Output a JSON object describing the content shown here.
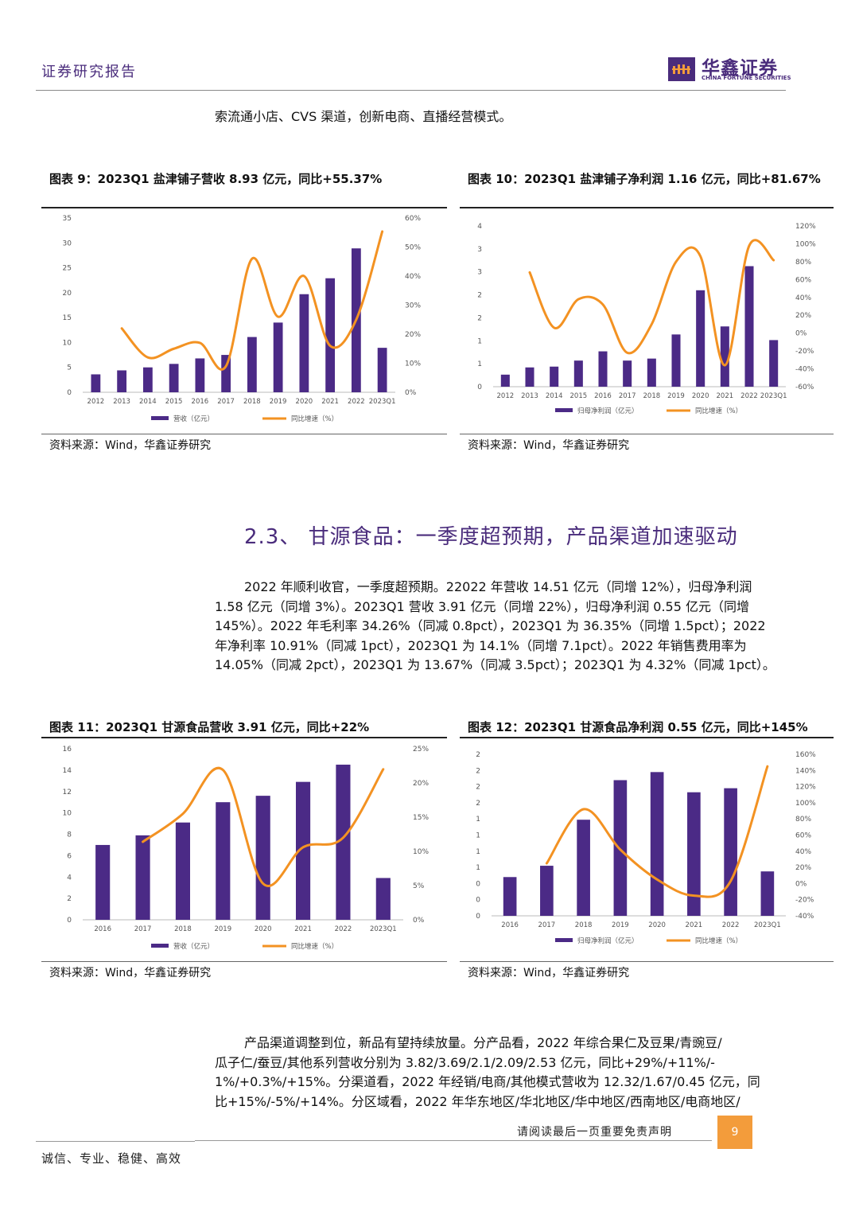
{
  "header": {
    "title": "证券研究报告",
    "logo_cn": "华鑫证券",
    "logo_en": "CHINA FORTUNE SECURITIES"
  },
  "intro_text": "索流通小店、CVS 渠道，创新电商、直播经营模式。",
  "figure9": {
    "title": "图表 9：2023Q1 盐津铺子营收 8.93 亿元，同比+55.37%",
    "source": "资料来源：Wind，华鑫证券研究",
    "chart_data": {
      "type": "bar",
      "categories": [
        "2012",
        "2013",
        "2014",
        "2015",
        "2016",
        "2017",
        "2018",
        "2019",
        "2020",
        "2021",
        "2022",
        "2023Q1"
      ],
      "series": [
        {
          "name": "营收（亿元）",
          "type": "bar",
          "axis": "left",
          "color": "#4b2a86",
          "values": [
            3.6,
            4.4,
            5.0,
            5.7,
            6.8,
            7.5,
            11.1,
            14.0,
            19.7,
            22.9,
            28.9,
            8.93
          ]
        },
        {
          "name": "同比增速（%）",
          "type": "line",
          "axis": "right",
          "color": "#f39222",
          "values": [
            null,
            22,
            12,
            15,
            17,
            9,
            46,
            26,
            40,
            16,
            25,
            55.37
          ]
        }
      ],
      "yleft": {
        "min": 0,
        "max": 35,
        "ticks": [
          "0",
          "5",
          "10",
          "15",
          "20",
          "25",
          "30",
          "35"
        ]
      },
      "yright": {
        "min": 0,
        "max": 60,
        "ticks": [
          "0%",
          "10%",
          "20%",
          "30%",
          "40%",
          "50%",
          "60%"
        ]
      }
    }
  },
  "figure10": {
    "title": "图表 10：2023Q1 盐津铺子净利润 1.16 亿元，同比+81.67%",
    "source": "资料来源：Wind，华鑫证券研究",
    "chart_data": {
      "type": "bar",
      "categories": [
        "2012",
        "2013",
        "2014",
        "2015",
        "2016",
        "2017",
        "2018",
        "2019",
        "2020",
        "2021",
        "2022",
        "2023Q1"
      ],
      "series": [
        {
          "name": "归母净利润（亿元）",
          "type": "bar",
          "axis": "left",
          "color": "#4b2a86",
          "values": [
            0.3,
            0.48,
            0.5,
            0.65,
            0.88,
            0.65,
            0.7,
            1.3,
            2.4,
            1.5,
            3.0,
            1.16
          ]
        },
        {
          "name": "同比增速（%）",
          "type": "line",
          "axis": "right",
          "color": "#f39222",
          "values": [
            null,
            68,
            6,
            38,
            32,
            -22,
            10,
            80,
            86,
            -36,
            98,
            81.67
          ]
        }
      ],
      "yleft": {
        "min": 0,
        "max": 4,
        "ticks": [
          "0",
          "1",
          "1",
          "2",
          "2",
          "3",
          "3",
          "4"
        ]
      },
      "yright": {
        "min": -60,
        "max": 120,
        "ticks": [
          "-60%",
          "-40%",
          "-20%",
          "0%",
          "20%",
          "40%",
          "60%",
          "80%",
          "100%",
          "120%"
        ]
      }
    }
  },
  "section_title": "2.3、 甘源食品：一季度超预期，产品渠道加速驱动",
  "para1": [
    "2022 年顺利收官，一季度超预期。22022 年营收 14.51 亿元（同增 12%），归母净利润",
    "1.58 亿元（同增 3%）。2023Q1 营收 3.91 亿元（同增 22%），归母净利润 0.55 亿元（同增",
    "145%）。2022 年毛利率 34.26%（同减 0.8pct），2023Q1 为 36.35%（同增 1.5pct）；2022",
    "年净利率 10.91%（同减 1pct），2023Q1 为 14.1%（同增 7.1pct）。2022 年销售费用率为",
    "14.05%（同减 2pct），2023Q1 为 13.67%（同减 3.5pct）；2023Q1 为 4.32%（同减 1pct）。"
  ],
  "figure11": {
    "title": "图表 11：2023Q1 甘源食品营收 3.91 亿元，同比+22%",
    "source": "资料来源：Wind，华鑫证券研究",
    "chart_data": {
      "type": "bar",
      "categories": [
        "2016",
        "2017",
        "2018",
        "2019",
        "2020",
        "2021",
        "2022",
        "2023Q1"
      ],
      "series": [
        {
          "name": "营收（亿元）",
          "type": "bar",
          "axis": "left",
          "color": "#4b2a86",
          "values": [
            7.0,
            7.9,
            9.1,
            11.0,
            11.6,
            12.9,
            14.51,
            3.91
          ]
        },
        {
          "name": "同比增速（%）",
          "type": "line",
          "axis": "right",
          "color": "#f39222",
          "values": [
            null,
            11.4,
            15.5,
            21.9,
            5.3,
            10.6,
            12,
            22
          ]
        }
      ],
      "yleft": {
        "min": 0,
        "max": 16,
        "ticks": [
          "0",
          "2",
          "4",
          "6",
          "8",
          "10",
          "12",
          "14",
          "16"
        ]
      },
      "yright": {
        "min": 0,
        "max": 25,
        "ticks": [
          "0%",
          "5%",
          "10%",
          "15%",
          "20%",
          "25%"
        ]
      }
    }
  },
  "figure12": {
    "title": "图表 12：2023Q1 甘源食品净利润 0.55 亿元，同比+145%",
    "source": "资料来源：Wind，华鑫证券研究",
    "chart_data": {
      "type": "bar",
      "categories": [
        "2016",
        "2017",
        "2018",
        "2019",
        "2020",
        "2021",
        "2022",
        "2023Q1"
      ],
      "series": [
        {
          "name": "归母净利润（亿元）",
          "type": "bar",
          "axis": "left",
          "color": "#4b2a86",
          "values": [
            0.48,
            0.62,
            1.19,
            1.68,
            1.78,
            1.53,
            1.58,
            0.55
          ]
        },
        {
          "name": "同比增速（%）",
          "type": "line",
          "axis": "right",
          "color": "#f39222",
          "values": [
            null,
            25,
            92,
            42,
            5,
            -15,
            3,
            145
          ]
        }
      ],
      "yleft": {
        "min": 0,
        "max": 2,
        "ticks": [
          "0",
          "0",
          "0",
          "1",
          "1",
          "1",
          "1",
          "2",
          "2",
          "2",
          "2"
        ]
      },
      "yright": {
        "min": -40,
        "max": 160,
        "ticks": [
          "-40%",
          "-20%",
          "0%",
          "20%",
          "40%",
          "60%",
          "80%",
          "100%",
          "120%",
          "140%",
          "160%"
        ]
      }
    }
  },
  "para2": [
    "产品渠道调整到位，新品有望持续放量。分产品看，2022 年综合果仁及豆果/青豌豆/",
    "瓜子仁/蚕豆/其他系列营收分别为 3.82/3.69/2.1/2.09/2.53 亿元，同比+29%/+11%/-",
    "1%/+0.3%/+15%。分渠道看，2022 年经销/电商/其他模式营收为 12.32/1.67/0.45 亿元，同",
    "比+15%/-5%/+14%。分区域看，2022 年华东地区/华北地区/华中地区/西南地区/电商地区/"
  ],
  "footer": {
    "note": "请阅读最后一页重要免责声明",
    "page": "9",
    "motto": "诚信、专业、稳健、高效"
  }
}
